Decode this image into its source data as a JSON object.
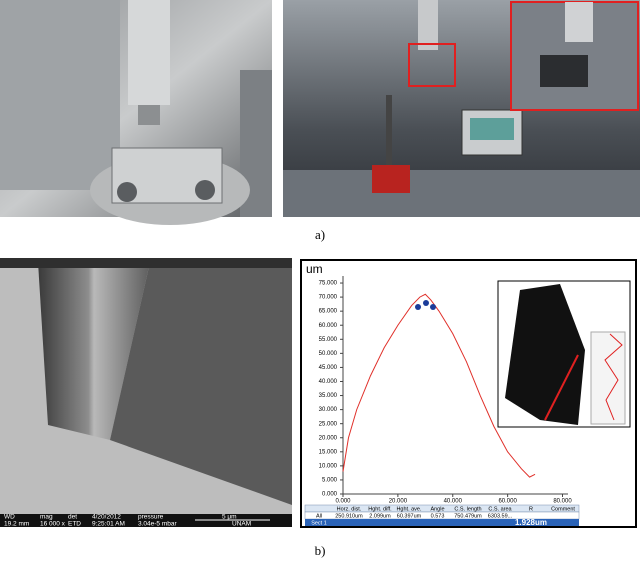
{
  "figure_labels": {
    "a": "a)",
    "b": "b)"
  },
  "sem_bar": {
    "row1": [
      "WD",
      "mag",
      "det",
      "4/20/2012",
      "pressure",
      "5 μm"
    ],
    "row2": [
      "19.2 mm",
      "16 000 x",
      "ETD",
      "9:25:01 AM",
      "3.04e-5 mbar",
      "UNAM"
    ]
  },
  "chart_data": {
    "type": "line",
    "y_label": "um",
    "x": [
      0,
      2,
      5,
      10,
      15,
      20,
      25,
      28,
      30,
      32,
      35,
      40,
      45,
      50,
      55,
      60,
      65,
      68,
      70
    ],
    "series": [
      {
        "name": "profile",
        "color": "#e0302a",
        "values": [
          8,
          20,
          30,
          42,
          52,
          60,
          67,
          70,
          71,
          69,
          65,
          57,
          47,
          35,
          24,
          15,
          9,
          6,
          7
        ]
      }
    ],
    "xlim": [
      0,
      82
    ],
    "xticks": [
      {
        "value": 0,
        "label": "0.000"
      },
      {
        "value": 20,
        "label": "20.000"
      },
      {
        "value": 40,
        "label": "40.000"
      },
      {
        "value": 60,
        "label": "60.000"
      },
      {
        "value": 80,
        "label": "80.000"
      }
    ],
    "ylim": [
      0,
      77.5
    ],
    "yticks": [
      {
        "value": 0,
        "label": "0.000"
      },
      {
        "value": 5,
        "label": "5.000"
      },
      {
        "value": 10,
        "label": "10.000"
      },
      {
        "value": 15,
        "label": "15.000"
      },
      {
        "value": 20,
        "label": "20.000"
      },
      {
        "value": 25,
        "label": "25.000"
      },
      {
        "value": 30,
        "label": "30.000"
      },
      {
        "value": 35,
        "label": "35.000"
      },
      {
        "value": 40,
        "label": "40.000"
      },
      {
        "value": 45,
        "label": "45.000"
      },
      {
        "value": 50,
        "label": "50.000"
      },
      {
        "value": 55,
        "label": "55.000"
      },
      {
        "value": 60,
        "label": "60.000"
      },
      {
        "value": 65,
        "label": "65.000"
      },
      {
        "value": 70,
        "label": "70.000"
      },
      {
        "value": 75,
        "label": "75.000"
      }
    ]
  },
  "table": {
    "header": [
      "",
      "Horz. dist.",
      "Hght. diff.",
      "Hght. ave.",
      "Angle",
      "C.S. length",
      "C.S. area",
      "R",
      "Comment"
    ],
    "rows": [
      [
        "All",
        "250.910um",
        "2.099um",
        "60.397um",
        "0.573",
        "750.479um",
        "6303.59..."
      ],
      [
        "Sect 1",
        "1.928um"
      ]
    ]
  }
}
